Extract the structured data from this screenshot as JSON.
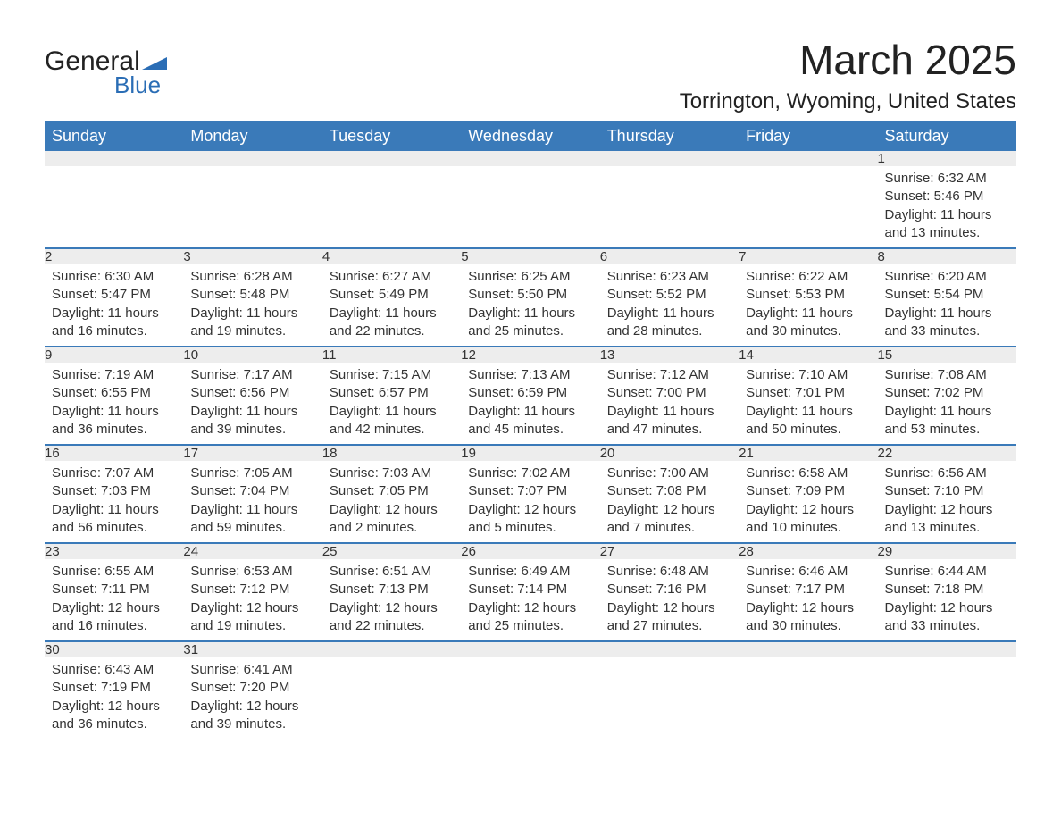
{
  "logo": {
    "general": "General",
    "blue": "Blue"
  },
  "title": "March 2025",
  "location": "Torrington, Wyoming, United States",
  "colors": {
    "header_bg": "#3a7ab9",
    "header_text": "#ffffff",
    "daynum_bg": "#ededed",
    "row_border": "#3a7ab9",
    "text": "#333333",
    "logo_blue": "#2a6db5"
  },
  "weekdays": [
    "Sunday",
    "Monday",
    "Tuesday",
    "Wednesday",
    "Thursday",
    "Friday",
    "Saturday"
  ],
  "weeks": [
    [
      null,
      null,
      null,
      null,
      null,
      null,
      {
        "n": "1",
        "sunrise": "Sunrise: 6:32 AM",
        "sunset": "Sunset: 5:46 PM",
        "day1": "Daylight: 11 hours",
        "day2": "and 13 minutes."
      }
    ],
    [
      {
        "n": "2",
        "sunrise": "Sunrise: 6:30 AM",
        "sunset": "Sunset: 5:47 PM",
        "day1": "Daylight: 11 hours",
        "day2": "and 16 minutes."
      },
      {
        "n": "3",
        "sunrise": "Sunrise: 6:28 AM",
        "sunset": "Sunset: 5:48 PM",
        "day1": "Daylight: 11 hours",
        "day2": "and 19 minutes."
      },
      {
        "n": "4",
        "sunrise": "Sunrise: 6:27 AM",
        "sunset": "Sunset: 5:49 PM",
        "day1": "Daylight: 11 hours",
        "day2": "and 22 minutes."
      },
      {
        "n": "5",
        "sunrise": "Sunrise: 6:25 AM",
        "sunset": "Sunset: 5:50 PM",
        "day1": "Daylight: 11 hours",
        "day2": "and 25 minutes."
      },
      {
        "n": "6",
        "sunrise": "Sunrise: 6:23 AM",
        "sunset": "Sunset: 5:52 PM",
        "day1": "Daylight: 11 hours",
        "day2": "and 28 minutes."
      },
      {
        "n": "7",
        "sunrise": "Sunrise: 6:22 AM",
        "sunset": "Sunset: 5:53 PM",
        "day1": "Daylight: 11 hours",
        "day2": "and 30 minutes."
      },
      {
        "n": "8",
        "sunrise": "Sunrise: 6:20 AM",
        "sunset": "Sunset: 5:54 PM",
        "day1": "Daylight: 11 hours",
        "day2": "and 33 minutes."
      }
    ],
    [
      {
        "n": "9",
        "sunrise": "Sunrise: 7:19 AM",
        "sunset": "Sunset: 6:55 PM",
        "day1": "Daylight: 11 hours",
        "day2": "and 36 minutes."
      },
      {
        "n": "10",
        "sunrise": "Sunrise: 7:17 AM",
        "sunset": "Sunset: 6:56 PM",
        "day1": "Daylight: 11 hours",
        "day2": "and 39 minutes."
      },
      {
        "n": "11",
        "sunrise": "Sunrise: 7:15 AM",
        "sunset": "Sunset: 6:57 PM",
        "day1": "Daylight: 11 hours",
        "day2": "and 42 minutes."
      },
      {
        "n": "12",
        "sunrise": "Sunrise: 7:13 AM",
        "sunset": "Sunset: 6:59 PM",
        "day1": "Daylight: 11 hours",
        "day2": "and 45 minutes."
      },
      {
        "n": "13",
        "sunrise": "Sunrise: 7:12 AM",
        "sunset": "Sunset: 7:00 PM",
        "day1": "Daylight: 11 hours",
        "day2": "and 47 minutes."
      },
      {
        "n": "14",
        "sunrise": "Sunrise: 7:10 AM",
        "sunset": "Sunset: 7:01 PM",
        "day1": "Daylight: 11 hours",
        "day2": "and 50 minutes."
      },
      {
        "n": "15",
        "sunrise": "Sunrise: 7:08 AM",
        "sunset": "Sunset: 7:02 PM",
        "day1": "Daylight: 11 hours",
        "day2": "and 53 minutes."
      }
    ],
    [
      {
        "n": "16",
        "sunrise": "Sunrise: 7:07 AM",
        "sunset": "Sunset: 7:03 PM",
        "day1": "Daylight: 11 hours",
        "day2": "and 56 minutes."
      },
      {
        "n": "17",
        "sunrise": "Sunrise: 7:05 AM",
        "sunset": "Sunset: 7:04 PM",
        "day1": "Daylight: 11 hours",
        "day2": "and 59 minutes."
      },
      {
        "n": "18",
        "sunrise": "Sunrise: 7:03 AM",
        "sunset": "Sunset: 7:05 PM",
        "day1": "Daylight: 12 hours",
        "day2": "and 2 minutes."
      },
      {
        "n": "19",
        "sunrise": "Sunrise: 7:02 AM",
        "sunset": "Sunset: 7:07 PM",
        "day1": "Daylight: 12 hours",
        "day2": "and 5 minutes."
      },
      {
        "n": "20",
        "sunrise": "Sunrise: 7:00 AM",
        "sunset": "Sunset: 7:08 PM",
        "day1": "Daylight: 12 hours",
        "day2": "and 7 minutes."
      },
      {
        "n": "21",
        "sunrise": "Sunrise: 6:58 AM",
        "sunset": "Sunset: 7:09 PM",
        "day1": "Daylight: 12 hours",
        "day2": "and 10 minutes."
      },
      {
        "n": "22",
        "sunrise": "Sunrise: 6:56 AM",
        "sunset": "Sunset: 7:10 PM",
        "day1": "Daylight: 12 hours",
        "day2": "and 13 minutes."
      }
    ],
    [
      {
        "n": "23",
        "sunrise": "Sunrise: 6:55 AM",
        "sunset": "Sunset: 7:11 PM",
        "day1": "Daylight: 12 hours",
        "day2": "and 16 minutes."
      },
      {
        "n": "24",
        "sunrise": "Sunrise: 6:53 AM",
        "sunset": "Sunset: 7:12 PM",
        "day1": "Daylight: 12 hours",
        "day2": "and 19 minutes."
      },
      {
        "n": "25",
        "sunrise": "Sunrise: 6:51 AM",
        "sunset": "Sunset: 7:13 PM",
        "day1": "Daylight: 12 hours",
        "day2": "and 22 minutes."
      },
      {
        "n": "26",
        "sunrise": "Sunrise: 6:49 AM",
        "sunset": "Sunset: 7:14 PM",
        "day1": "Daylight: 12 hours",
        "day2": "and 25 minutes."
      },
      {
        "n": "27",
        "sunrise": "Sunrise: 6:48 AM",
        "sunset": "Sunset: 7:16 PM",
        "day1": "Daylight: 12 hours",
        "day2": "and 27 minutes."
      },
      {
        "n": "28",
        "sunrise": "Sunrise: 6:46 AM",
        "sunset": "Sunset: 7:17 PM",
        "day1": "Daylight: 12 hours",
        "day2": "and 30 minutes."
      },
      {
        "n": "29",
        "sunrise": "Sunrise: 6:44 AM",
        "sunset": "Sunset: 7:18 PM",
        "day1": "Daylight: 12 hours",
        "day2": "and 33 minutes."
      }
    ],
    [
      {
        "n": "30",
        "sunrise": "Sunrise: 6:43 AM",
        "sunset": "Sunset: 7:19 PM",
        "day1": "Daylight: 12 hours",
        "day2": "and 36 minutes."
      },
      {
        "n": "31",
        "sunrise": "Sunrise: 6:41 AM",
        "sunset": "Sunset: 7:20 PM",
        "day1": "Daylight: 12 hours",
        "day2": "and 39 minutes."
      },
      null,
      null,
      null,
      null,
      null
    ]
  ]
}
